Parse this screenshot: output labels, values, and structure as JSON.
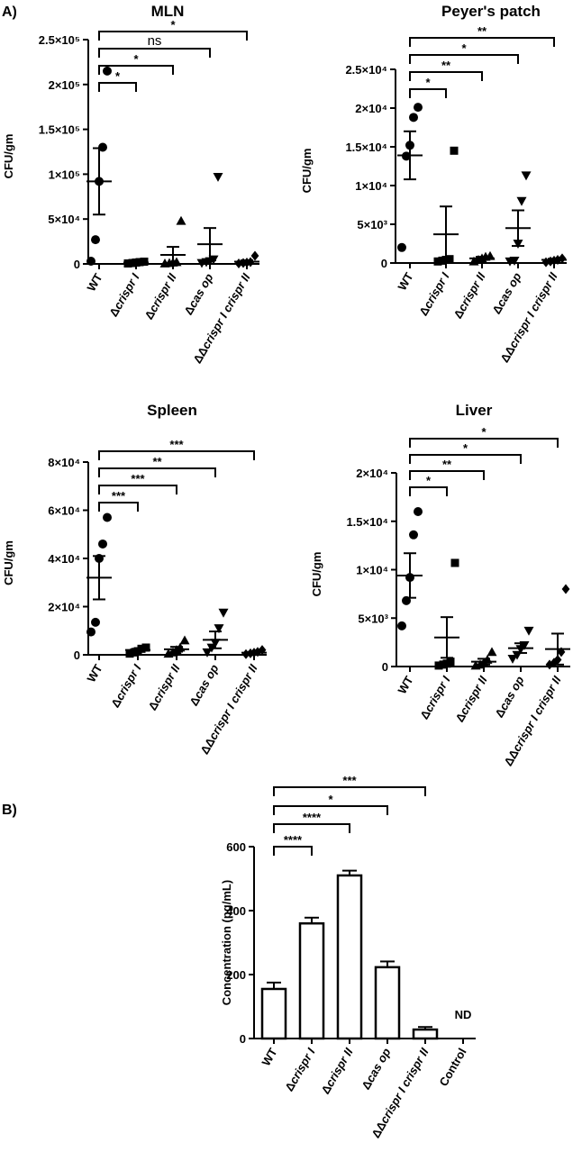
{
  "panel_labels": [
    "A)",
    "B)"
  ],
  "chart_data": [
    {
      "type": "scatter",
      "title": "MLN",
      "ylabel": "CFU/gm",
      "ylim": [
        0,
        250000
      ],
      "yticks": [
        {
          "v": 0,
          "label": "0"
        },
        {
          "v": 50000,
          "label": "5×10⁴"
        },
        {
          "v": 100000,
          "label": "1×10⁵"
        },
        {
          "v": 150000,
          "label": "1.5×10⁵"
        },
        {
          "v": 200000,
          "label": "2×10⁵"
        },
        {
          "v": 250000,
          "label": "2.5×10⁵"
        }
      ],
      "categories": [
        "WT",
        "Δcrispr I",
        "Δcrispr II",
        "Δcas op",
        "ΔΔcrispr I crispr II"
      ],
      "points": [
        [
          3000,
          27000,
          92000,
          130000,
          215000
        ],
        [
          500,
          1000,
          1500,
          2000,
          2500
        ],
        [
          500,
          1000,
          1500,
          2000,
          48000
        ],
        [
          1000,
          2000,
          3000,
          5000,
          97000
        ],
        [
          500,
          1000,
          1500,
          2000,
          9000
        ]
      ],
      "means": [
        92000,
        1500,
        10000,
        22000,
        2500
      ],
      "sem": [
        37000,
        500,
        9000,
        18000,
        1500
      ],
      "markers": [
        "circle",
        "square",
        "triangle",
        "triangle-down",
        "diamond"
      ],
      "comparisons": [
        {
          "from": 0,
          "to": 1,
          "label": "*"
        },
        {
          "from": 0,
          "to": 2,
          "label": "*"
        },
        {
          "from": 0,
          "to": 3,
          "label": "ns"
        },
        {
          "from": 0,
          "to": 4,
          "label": "*"
        }
      ]
    },
    {
      "type": "scatter",
      "title": "Peyer's patch",
      "ylabel": "CFU/gm",
      "ylim": [
        0,
        25000
      ],
      "yticks": [
        {
          "v": 0,
          "label": "0"
        },
        {
          "v": 5000,
          "label": "5×10³"
        },
        {
          "v": 10000,
          "label": "1×10⁴"
        },
        {
          "v": 15000,
          "label": "1.5×10⁴"
        },
        {
          "v": 20000,
          "label": "2×10⁴"
        },
        {
          "v": 25000,
          "label": "2.5×10⁴"
        }
      ],
      "categories": [
        "WT",
        "Δcrispr I",
        "Δcrispr II",
        "Δcas op",
        "ΔΔcrispr I crispr II"
      ],
      "points": [
        [
          2000,
          13800,
          15200,
          18800,
          20100
        ],
        [
          200,
          300,
          400,
          500,
          14500
        ],
        [
          200,
          400,
          600,
          800,
          900
        ],
        [
          200,
          300,
          2500,
          8000,
          11300
        ],
        [
          100,
          200,
          300,
          400,
          600
        ]
      ],
      "means": [
        13900,
        3700,
        600,
        4500,
        400
      ],
      "sem": [
        3100,
        3600,
        200,
        2300,
        150
      ],
      "markers": [
        "circle",
        "square",
        "triangle",
        "triangle-down",
        "diamond"
      ],
      "comparisons": [
        {
          "from": 0,
          "to": 1,
          "label": "*"
        },
        {
          "from": 0,
          "to": 2,
          "label": "**"
        },
        {
          "from": 0,
          "to": 3,
          "label": "*"
        },
        {
          "from": 0,
          "to": 4,
          "label": "**"
        }
      ]
    },
    {
      "type": "scatter",
      "title": "Spleen",
      "ylabel": "CFU/gm",
      "ylim": [
        0,
        80000
      ],
      "yticks": [
        {
          "v": 0,
          "label": "0"
        },
        {
          "v": 20000,
          "label": "2×10⁴"
        },
        {
          "v": 40000,
          "label": "4×10⁴"
        },
        {
          "v": 60000,
          "label": "6×10⁴"
        },
        {
          "v": 80000,
          "label": "8×10⁴"
        }
      ],
      "categories": [
        "WT",
        "Δcrispr I",
        "Δcrispr II",
        "Δcas op",
        "ΔΔcrispr I crispr II"
      ],
      "points": [
        [
          9500,
          13500,
          40000,
          46000,
          57000
        ],
        [
          500,
          1000,
          1500,
          2500,
          3000
        ],
        [
          500,
          1000,
          2000,
          3000,
          6000
        ],
        [
          1000,
          3000,
          5000,
          11000,
          17500
        ],
        [
          300,
          600,
          900,
          1200,
          2000
        ]
      ],
      "means": [
        32000,
        2000,
        2300,
        6200,
        900
      ],
      "sem": [
        9000,
        500,
        1000,
        3500,
        300
      ],
      "markers": [
        "circle",
        "square",
        "triangle",
        "triangle-down",
        "diamond"
      ],
      "comparisons": [
        {
          "from": 0,
          "to": 1,
          "label": "***"
        },
        {
          "from": 0,
          "to": 2,
          "label": "***"
        },
        {
          "from": 0,
          "to": 3,
          "label": "**"
        },
        {
          "from": 0,
          "to": 4,
          "label": "***"
        }
      ]
    },
    {
      "type": "scatter",
      "title": "Liver",
      "ylabel": "CFU/gm",
      "ylim": [
        0,
        20000
      ],
      "yticks": [
        {
          "v": 0,
          "label": "0"
        },
        {
          "v": 5000,
          "label": "5×10³"
        },
        {
          "v": 10000,
          "label": "1×10⁴"
        },
        {
          "v": 15000,
          "label": "1.5×10⁴"
        },
        {
          "v": 20000,
          "label": "2×10⁴"
        }
      ],
      "categories": [
        "WT",
        "Δcrispr I",
        "Δcrispr II",
        "Δcas op",
        "ΔΔcrispr I crispr II"
      ],
      "points": [
        [
          4200,
          6800,
          9200,
          13600,
          16000
        ],
        [
          100,
          200,
          300,
          500,
          10700
        ],
        [
          100,
          200,
          400,
          700,
          1500
        ],
        [
          800,
          1200,
          1800,
          2200,
          3700
        ],
        [
          200,
          400,
          700,
          1500,
          8000
        ]
      ],
      "means": [
        9400,
        3000,
        500,
        1900,
        1800
      ],
      "sem": [
        2300,
        2100,
        300,
        500,
        1600
      ],
      "markers": [
        "circle",
        "square",
        "triangle",
        "triangle-down",
        "diamond"
      ],
      "comparisons": [
        {
          "from": 0,
          "to": 1,
          "label": "*"
        },
        {
          "from": 0,
          "to": 2,
          "label": "**"
        },
        {
          "from": 0,
          "to": 3,
          "label": "*"
        },
        {
          "from": 0,
          "to": 4,
          "label": "*"
        }
      ]
    },
    {
      "type": "bar",
      "title": "",
      "ylabel": "Concentration (pg/mL)",
      "ylim": [
        0,
        600
      ],
      "yticks": [
        {
          "v": 0,
          "label": "0"
        },
        {
          "v": 200,
          "label": "200"
        },
        {
          "v": 400,
          "label": "400"
        },
        {
          "v": 600,
          "label": "600"
        }
      ],
      "categories": [
        "WT",
        "Δcrispr I",
        "Δcrispr II",
        "Δcas op",
        "ΔΔcrispr I crispr II",
        "Control"
      ],
      "values": [
        155,
        360,
        510,
        223,
        28,
        null
      ],
      "errors": [
        20,
        18,
        15,
        18,
        8,
        null
      ],
      "value_annotations": [
        null,
        null,
        null,
        null,
        null,
        "ND"
      ],
      "comparisons": [
        {
          "from": 0,
          "to": 1,
          "label": "****"
        },
        {
          "from": 0,
          "to": 2,
          "label": "****"
        },
        {
          "from": 0,
          "to": 3,
          "label": "*"
        },
        {
          "from": 0,
          "to": 4,
          "label": "***"
        }
      ]
    }
  ]
}
